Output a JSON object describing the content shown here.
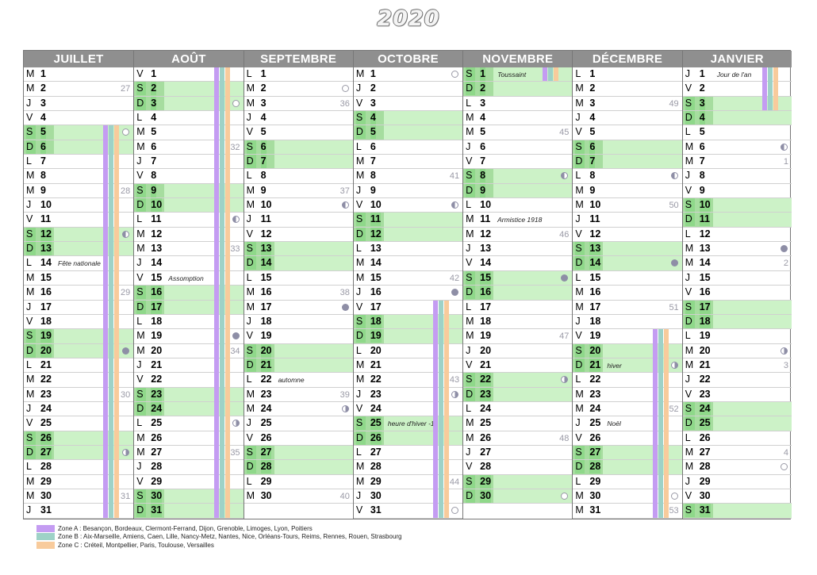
{
  "title": "2020",
  "colors": {
    "weekend": "#ccf2c7",
    "header": "#8f8f8f",
    "zone_a": "#c49cf2",
    "zone_b": "#9ed2c7",
    "zone_c": "#f8cb9c"
  },
  "legend": [
    {
      "zone": "a",
      "label": "Zone A : Besançon, Bordeaux, Clermont-Ferrand, Dijon, Grenoble, Limoges, Lyon, Poitiers"
    },
    {
      "zone": "b",
      "label": "Zone B : Aix-Marseille, Amiens, Caen, Lille, Nancy-Metz, Nantes, Nice, Orléans-Tours, Reims, Rennes, Rouen, Strasbourg"
    },
    {
      "zone": "c",
      "label": "Zone C : Créteil, Montpellier, Paris, Toulouse, Versailles"
    }
  ],
  "months": [
    {
      "name": "JUILLET",
      "first_weekday": 2,
      "days": 31,
      "holidays": [
        {
          "zone": "all",
          "from": 5,
          "to": 31
        }
      ],
      "events": {
        "14": "Fête nationale"
      },
      "weeks": {
        "2": "27",
        "9": "28",
        "16": "29",
        "23": "30",
        "30": "31"
      },
      "moons": {
        "5": "full",
        "12": "lq",
        "20": "new",
        "27": "fq"
      }
    },
    {
      "name": "AOÛT",
      "first_weekday": 5,
      "days": 31,
      "holidays": [
        {
          "zone": "all",
          "from": 1,
          "to": 31
        }
      ],
      "events": {
        "15": "Assomption"
      },
      "weeks": {
        "6": "32",
        "13": "33",
        "20": "34",
        "27": "35"
      },
      "moons": {
        "3": "full",
        "11": "lq",
        "19": "new",
        "25": "fq"
      }
    },
    {
      "name": "SEPTEMBRE",
      "first_weekday": 1,
      "days": 30,
      "holidays": [],
      "events": {
        "22": "automne"
      },
      "weeks": {
        "3": "36",
        "9": "37",
        "16": "38",
        "23": "39",
        "30": "40"
      },
      "moons": {
        "2": "full",
        "10": "lq",
        "17": "new",
        "24": "fq"
      }
    },
    {
      "name": "OCTOBRE",
      "first_weekday": 3,
      "days": 31,
      "holidays": [
        {
          "zone": "all",
          "from": 17,
          "to": 31
        }
      ],
      "events": {
        "25": "heure d'hiver -1h"
      },
      "weeks": {
        "8": "41",
        "15": "42",
        "22": "43",
        "29": "44"
      },
      "moons": {
        "1": "full",
        "10": "lq",
        "16": "new",
        "23": "fq",
        "31": "full"
      }
    },
    {
      "name": "NOVEMBRE",
      "first_weekday": 6,
      "days": 30,
      "holidays": [
        {
          "zone": "all",
          "from": 1,
          "to": 1
        }
      ],
      "events": {
        "1": "Toussaint",
        "11": "Armistice 1918"
      },
      "weeks": {
        "5": "45",
        "12": "46",
        "19": "47",
        "26": "48"
      },
      "moons": {
        "8": "lq",
        "15": "new",
        "22": "fq",
        "30": "full"
      }
    },
    {
      "name": "DÉCEMBRE",
      "first_weekday": 1,
      "days": 31,
      "holidays": [
        {
          "zone": "all",
          "from": 19,
          "to": 31
        }
      ],
      "events": {
        "21": "hiver",
        "25": "Noël"
      },
      "weeks": {
        "3": "49",
        "10": "50",
        "17": "51",
        "24": "52",
        "31": "53"
      },
      "moons": {
        "8": "lq",
        "14": "new",
        "21": "fq",
        "30": "full"
      }
    },
    {
      "name": "JANVIER",
      "first_weekday": 4,
      "days": 31,
      "holidays": [
        {
          "zone": "all",
          "from": 1,
          "to": 3
        }
      ],
      "events": {
        "1": "Jour de l'an"
      },
      "weeks": {
        "7": "1",
        "14": "2",
        "21": "3",
        "27": "4"
      },
      "moons": {
        "6": "lq",
        "13": "new",
        "20": "fq",
        "28": "full"
      }
    }
  ],
  "weekday_letters": [
    "L",
    "M",
    "M",
    "J",
    "V",
    "S",
    "D"
  ]
}
